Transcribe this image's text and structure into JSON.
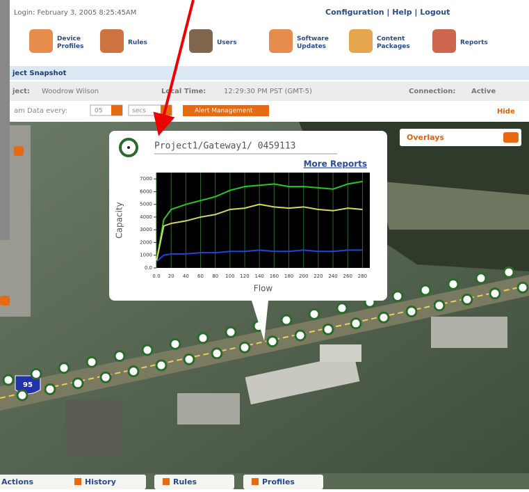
{
  "header": {
    "login": "Login: February 3, 2005 8:25:45AM",
    "links": "Configuration | Help | Logout"
  },
  "toolbar": [
    {
      "lines": [
        "Device",
        "Profiles"
      ]
    },
    {
      "lines": [
        "Rules"
      ]
    },
    {
      "lines": [
        "Users"
      ]
    },
    {
      "lines": [
        "Software",
        "Updates"
      ]
    },
    {
      "lines": [
        "Content",
        "Packages"
      ]
    },
    {
      "lines": [
        "Reports"
      ]
    }
  ],
  "snapshot": {
    "title": "ject Snapshot",
    "project_label": "ject:",
    "project": "Woodrow Wilson",
    "local_time_label": "Local Time:",
    "local_time": "12:29:30 PM PST (GMT-5)",
    "connection_label": "Connection:",
    "connection": "Active",
    "stream_label": "am Data every:",
    "interval": "05",
    "unit": "secs",
    "alert_button": "Alert Management",
    "hide": "Hide"
  },
  "overlays": "Overlays",
  "highway_sign": "95",
  "popup": {
    "title": "Project1/Gateway1/ 0459113",
    "more_reports": "More Reports"
  },
  "chart_data": {
    "type": "line",
    "x_label": "Flow",
    "y_label": "Capacity",
    "x": [
      0,
      10,
      20,
      40,
      60,
      80,
      100,
      120,
      140,
      160,
      180,
      200,
      220,
      240,
      260,
      280
    ],
    "series": [
      {
        "color": "#22cc22",
        "values": [
          500,
          3800,
          4600,
          5000,
          5300,
          5600,
          6100,
          6400,
          6500,
          6600,
          6400,
          6400,
          6300,
          6200,
          6600,
          6800
        ]
      },
      {
        "color": "#d8d860",
        "values": [
          500,
          3300,
          3500,
          3700,
          4000,
          4200,
          4600,
          4700,
          5000,
          4800,
          4700,
          4800,
          4600,
          4500,
          4700,
          4600
        ]
      },
      {
        "color": "#2244dd",
        "values": [
          500,
          1000,
          1100,
          1100,
          1200,
          1200,
          1300,
          1300,
          1400,
          1300,
          1300,
          1400,
          1300,
          1300,
          1400,
          1400
        ]
      }
    ],
    "xlim": [
      0,
      290
    ],
    "ylim": [
      0,
      7500
    ],
    "xticks": [
      {
        "value": 0,
        "label": "0.0"
      },
      20,
      40,
      60,
      80,
      100,
      120,
      140,
      160,
      180,
      200,
      220,
      240,
      260,
      280
    ],
    "yticks": [
      {
        "value": 0,
        "label": "0.0"
      },
      1000,
      2000,
      3000,
      4000,
      5000,
      6000,
      7000
    ],
    "grid": true
  },
  "tabs": [
    "Actions",
    "History",
    "Rules",
    "Profiles"
  ]
}
